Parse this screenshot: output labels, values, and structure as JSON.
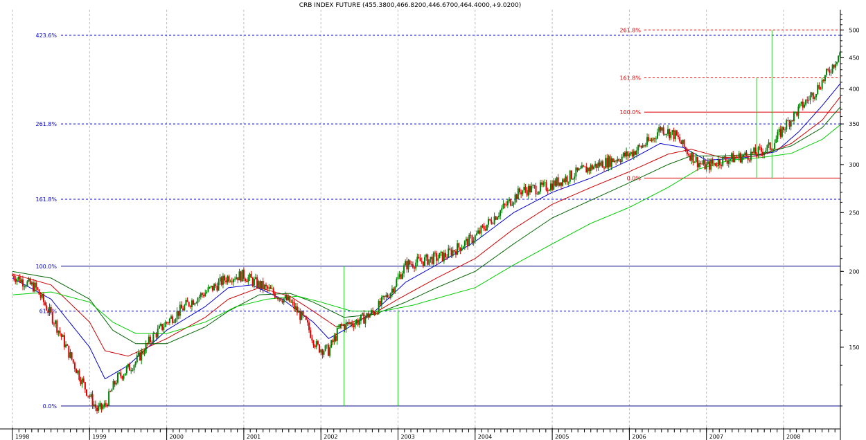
{
  "chart_data": {
    "type": "candlestick",
    "title": "CRB INDEX FUTURE (455.3800,466.8200,446.6700,464.4000,+9.0200)",
    "y_scale": "log",
    "ylim": [
      110,
      540
    ],
    "y_ticks": [
      "500",
      "450",
      "400",
      "350",
      "300",
      "250",
      "200",
      "150"
    ],
    "y_tick_values": [
      500,
      450,
      400,
      350,
      300,
      250,
      200,
      150
    ],
    "x_ticks": [
      "1998",
      "1999",
      "2000",
      "2001",
      "2002",
      "2003",
      "2004",
      "2005",
      "2006",
      "2007",
      "2008"
    ],
    "grid": true,
    "up_color": "#008000",
    "down_color": "#e00000",
    "series_points": [
      [
        0.0,
        197
      ],
      [
        0.3,
        188
      ],
      [
        0.55,
        165
      ],
      [
        0.75,
        145
      ],
      [
        0.95,
        128
      ],
      [
        1.1,
        118
      ],
      [
        1.2,
        120
      ],
      [
        1.35,
        133
      ],
      [
        1.6,
        142
      ],
      [
        1.8,
        155
      ],
      [
        2.0,
        165
      ],
      [
        2.3,
        178
      ],
      [
        2.6,
        188
      ],
      [
        2.8,
        196
      ],
      [
        3.0,
        197
      ],
      [
        3.2,
        190
      ],
      [
        3.4,
        184
      ],
      [
        3.6,
        178
      ],
      [
        3.8,
        165
      ],
      [
        3.95,
        150
      ],
      [
        4.1,
        148
      ],
      [
        4.25,
        162
      ],
      [
        4.5,
        166
      ],
      [
        4.7,
        172
      ],
      [
        4.9,
        185
      ],
      [
        5.1,
        205
      ],
      [
        5.3,
        208
      ],
      [
        5.6,
        212
      ],
      [
        6.0,
        228
      ],
      [
        6.3,
        250
      ],
      [
        6.6,
        272
      ],
      [
        6.9,
        275
      ],
      [
        7.1,
        282
      ],
      [
        7.3,
        290
      ],
      [
        7.6,
        300
      ],
      [
        8.0,
        312
      ],
      [
        8.3,
        330
      ],
      [
        8.4,
        345
      ],
      [
        8.6,
        335
      ],
      [
        8.75,
        315
      ],
      [
        8.9,
        302
      ],
      [
        9.0,
        298
      ],
      [
        9.2,
        305
      ],
      [
        9.5,
        310
      ],
      [
        9.7,
        315
      ],
      [
        9.85,
        322
      ],
      [
        10.0,
        345
      ],
      [
        10.2,
        370
      ],
      [
        10.4,
        395
      ],
      [
        10.55,
        420
      ],
      [
        10.65,
        440
      ],
      [
        10.75,
        464
      ]
    ],
    "moving_averages": [
      {
        "color": "#0000cc",
        "points": [
          [
            0.0,
            195
          ],
          [
            0.5,
            180
          ],
          [
            1.0,
            150
          ],
          [
            1.2,
            133
          ],
          [
            1.5,
            140
          ],
          [
            2.0,
            160
          ],
          [
            2.5,
            175
          ],
          [
            2.8,
            188
          ],
          [
            3.1,
            190
          ],
          [
            3.5,
            180
          ],
          [
            3.9,
            165
          ],
          [
            4.1,
            155
          ],
          [
            4.3,
            160
          ],
          [
            4.7,
            172
          ],
          [
            5.1,
            192
          ],
          [
            5.5,
            205
          ],
          [
            6.0,
            224
          ],
          [
            6.5,
            250
          ],
          [
            7.0,
            270
          ],
          [
            7.5,
            285
          ],
          [
            8.0,
            305
          ],
          [
            8.4,
            325
          ],
          [
            8.7,
            320
          ],
          [
            9.0,
            305
          ],
          [
            9.5,
            308
          ],
          [
            9.9,
            315
          ],
          [
            10.2,
            340
          ],
          [
            10.5,
            375
          ],
          [
            10.75,
            410
          ]
        ]
      },
      {
        "color": "#cc0000",
        "points": [
          [
            0.0,
            198
          ],
          [
            0.5,
            190
          ],
          [
            1.0,
            165
          ],
          [
            1.2,
            148
          ],
          [
            1.5,
            145
          ],
          [
            2.0,
            155
          ],
          [
            2.5,
            168
          ],
          [
            2.8,
            180
          ],
          [
            3.2,
            188
          ],
          [
            3.6,
            182
          ],
          [
            3.9,
            172
          ],
          [
            4.2,
            162
          ],
          [
            4.6,
            168
          ],
          [
            5.0,
            180
          ],
          [
            5.5,
            195
          ],
          [
            6.0,
            210
          ],
          [
            6.5,
            235
          ],
          [
            7.0,
            258
          ],
          [
            7.5,
            275
          ],
          [
            8.0,
            292
          ],
          [
            8.5,
            312
          ],
          [
            8.8,
            318
          ],
          [
            9.2,
            308
          ],
          [
            9.7,
            310
          ],
          [
            10.1,
            325
          ],
          [
            10.5,
            355
          ],
          [
            10.75,
            390
          ]
        ]
      },
      {
        "color": "#006400",
        "points": [
          [
            0.0,
            200
          ],
          [
            0.5,
            195
          ],
          [
            1.0,
            180
          ],
          [
            1.3,
            160
          ],
          [
            1.6,
            152
          ],
          [
            2.0,
            152
          ],
          [
            2.5,
            162
          ],
          [
            2.8,
            172
          ],
          [
            3.2,
            183
          ],
          [
            3.6,
            184
          ],
          [
            3.9,
            178
          ],
          [
            4.3,
            168
          ],
          [
            4.7,
            170
          ],
          [
            5.1,
            178
          ],
          [
            5.5,
            188
          ],
          [
            6.0,
            200
          ],
          [
            6.5,
            222
          ],
          [
            7.0,
            245
          ],
          [
            7.5,
            262
          ],
          [
            8.0,
            280
          ],
          [
            8.5,
            300
          ],
          [
            8.8,
            310
          ],
          [
            9.2,
            310
          ],
          [
            9.7,
            312
          ],
          [
            10.1,
            322
          ],
          [
            10.5,
            345
          ],
          [
            10.75,
            375
          ]
        ]
      },
      {
        "color": "#00cc00",
        "points": [
          [
            0.0,
            183
          ],
          [
            0.5,
            185
          ],
          [
            1.0,
            178
          ],
          [
            1.3,
            165
          ],
          [
            1.6,
            158
          ],
          [
            2.0,
            158
          ],
          [
            2.5,
            165
          ],
          [
            2.9,
            175
          ],
          [
            3.3,
            180
          ],
          [
            3.7,
            182
          ],
          [
            4.0,
            178
          ],
          [
            4.4,
            172
          ],
          [
            4.8,
            172
          ],
          [
            5.2,
            176
          ],
          [
            5.6,
            182
          ],
          [
            6.0,
            188
          ],
          [
            6.5,
            205
          ],
          [
            7.0,
            222
          ],
          [
            7.5,
            240
          ],
          [
            8.0,
            255
          ],
          [
            8.5,
            275
          ],
          [
            8.9,
            295
          ],
          [
            9.3,
            305
          ],
          [
            9.7,
            308
          ],
          [
            10.1,
            313
          ],
          [
            10.5,
            330
          ],
          [
            10.75,
            350
          ]
        ]
      }
    ],
    "fib_blue_labels": [
      "423.6%",
      "261.8%",
      "161.8%",
      "100.0%",
      "61.8%",
      "0.0%"
    ],
    "fib_blue_values": [
      490,
      350,
      263,
      204,
      172,
      120
    ],
    "fib_red_labels": [
      "261.8%",
      "161.8%",
      "100.0%",
      "0.0%"
    ],
    "fib_red_values": [
      500,
      417,
      366,
      285
    ],
    "markers": [
      {
        "x": 4.3,
        "from": 204,
        "to": 120
      },
      {
        "x": 5.0,
        "from": 172,
        "to": 120
      },
      {
        "x": 9.65,
        "from": 417,
        "to": 285
      },
      {
        "x": 9.85,
        "from": 500,
        "to": 285
      }
    ],
    "colors": {
      "blue_fib": "#0000cc",
      "red_fib": "#dd0000",
      "grid": "#bbbbbb",
      "marker": "#33cc33"
    }
  }
}
